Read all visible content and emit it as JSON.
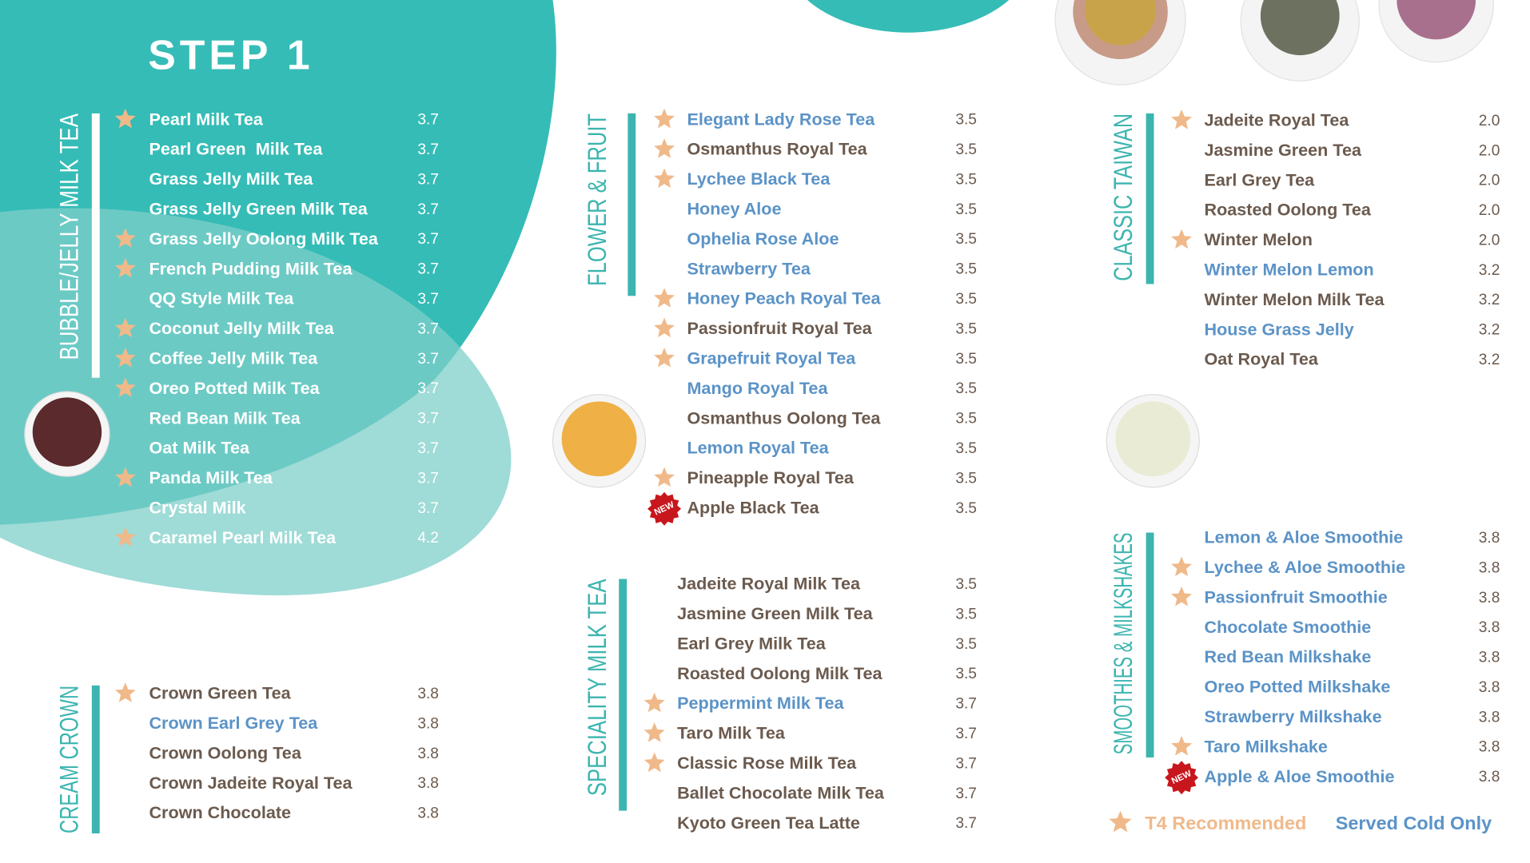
{
  "step": "STEP 1",
  "new_badge": "NEW",
  "sections": [
    {
      "title": "BUBBLE/JELLY MILK TEA",
      "items": [
        {
          "name": "Pearl Milk Tea",
          "price": "3.7",
          "star": true
        },
        {
          "name": "Pearl Green  Milk Tea",
          "price": "3.7"
        },
        {
          "name": "Grass Jelly Milk Tea",
          "price": "3.7"
        },
        {
          "name": "Grass Jelly Green Milk Tea",
          "price": "3.7"
        },
        {
          "name": "Grass Jelly Oolong Milk Tea",
          "price": "3.7",
          "star": true
        },
        {
          "name": "French Pudding Milk Tea",
          "price": "3.7",
          "star": true
        },
        {
          "name": "QQ Style Milk Tea",
          "price": "3.7"
        },
        {
          "name": "Coconut Jelly Milk Tea",
          "price": "3.7",
          "star": true
        },
        {
          "name": "Coffee Jelly Milk Tea",
          "price": "3.7",
          "star": true
        },
        {
          "name": "Oreo Potted Milk Tea",
          "price": "3.7",
          "star": true
        },
        {
          "name": "Red Bean Milk Tea",
          "price": "3.7"
        },
        {
          "name": "Oat Milk Tea",
          "price": "3.7"
        },
        {
          "name": "Panda Milk Tea",
          "price": "3.7",
          "star": true
        },
        {
          "name": "Crystal Milk",
          "price": "3.7"
        },
        {
          "name": "Caramel Pearl Milk Tea",
          "price": "4.2",
          "star": true
        }
      ]
    },
    {
      "title": "CREAM CROWN",
      "items": [
        {
          "name": "Crown Green Tea",
          "price": "3.8",
          "star": true
        },
        {
          "name": "Crown Earl Grey Tea",
          "price": "3.8",
          "cold": true
        },
        {
          "name": "Crown Oolong Tea",
          "price": "3.8"
        },
        {
          "name": "Crown Jadeite Royal Tea",
          "price": "3.8"
        },
        {
          "name": "Crown Chocolate",
          "price": "3.8"
        }
      ]
    },
    {
      "title": "FLOWER & FRUIT",
      "items": [
        {
          "name": "Elegant Lady Rose Tea",
          "price": "3.5",
          "star": true,
          "cold": true
        },
        {
          "name": "Osmanthus Royal Tea",
          "price": "3.5",
          "star": true
        },
        {
          "name": "Lychee Black Tea",
          "price": "3.5",
          "star": true,
          "cold": true
        },
        {
          "name": "Honey Aloe",
          "price": "3.5",
          "cold": true
        },
        {
          "name": "Ophelia Rose Aloe",
          "price": "3.5",
          "cold": true
        },
        {
          "name": "Strawberry Tea",
          "price": "3.5",
          "cold": true
        },
        {
          "name": "Honey Peach Royal Tea",
          "price": "3.5",
          "star": true,
          "cold": true
        },
        {
          "name": "Passionfruit Royal Tea",
          "price": "3.5",
          "star": true
        },
        {
          "name": "Grapefruit Royal Tea",
          "price": "3.5",
          "star": true,
          "cold": true
        },
        {
          "name": "Mango Royal Tea",
          "price": "3.5",
          "cold": true
        },
        {
          "name": "Osmanthus Oolong Tea",
          "price": "3.5"
        },
        {
          "name": "Lemon Royal Tea",
          "price": "3.5",
          "cold": true
        },
        {
          "name": "Pineapple Royal Tea",
          "price": "3.5",
          "star": true
        },
        {
          "name": "Apple Black Tea",
          "price": "3.5",
          "new": true
        }
      ]
    },
    {
      "title": "SPECIALITY MILK TEA",
      "items": [
        {
          "name": "Jadeite Royal Milk Tea",
          "price": "3.5"
        },
        {
          "name": "Jasmine Green Milk Tea",
          "price": "3.5"
        },
        {
          "name": "Earl Grey Milk Tea",
          "price": "3.5"
        },
        {
          "name": "Roasted Oolong Milk Tea",
          "price": "3.5"
        },
        {
          "name": "Peppermint Milk Tea",
          "price": "3.7",
          "star": true,
          "cold": true
        },
        {
          "name": "Taro Milk Tea",
          "price": "3.7",
          "star": true
        },
        {
          "name": "Classic Rose Milk Tea",
          "price": "3.7",
          "star": true
        },
        {
          "name": "Ballet Chocolate Milk Tea",
          "price": "3.7"
        },
        {
          "name": "Kyoto Green Tea Latte",
          "price": "3.7"
        }
      ]
    },
    {
      "title": "CLASSIC TAIWAN",
      "items": [
        {
          "name": "Jadeite Royal Tea",
          "price": "2.0",
          "star": true
        },
        {
          "name": "Jasmine Green Tea",
          "price": "2.0"
        },
        {
          "name": "Earl Grey Tea",
          "price": "2.0"
        },
        {
          "name": "Roasted Oolong Tea",
          "price": "2.0"
        },
        {
          "name": "Winter Melon",
          "price": "2.0",
          "star": true
        },
        {
          "name": "Winter Melon Lemon",
          "price": "3.2",
          "cold": true
        },
        {
          "name": "Winter Melon Milk Tea",
          "price": "3.2"
        },
        {
          "name": "House Grass Jelly",
          "price": "3.2",
          "cold": true
        },
        {
          "name": "Oat Royal Tea",
          "price": "3.2"
        }
      ]
    },
    {
      "title": "SMOOTHIES & MILKSHAKES",
      "items": [
        {
          "name": "Lemon & Aloe Smoothie",
          "price": "3.8",
          "cold": true
        },
        {
          "name": "Lychee & Aloe Smoothie",
          "price": "3.8",
          "star": true,
          "cold": true
        },
        {
          "name": "Passionfruit Smoothie",
          "price": "3.8",
          "star": true,
          "cold": true
        },
        {
          "name": "Chocolate Smoothie",
          "price": "3.8",
          "cold": true
        },
        {
          "name": "Red Bean Milkshake",
          "price": "3.8",
          "cold": true
        },
        {
          "name": "Oreo Potted Milkshake",
          "price": "3.8",
          "cold": true
        },
        {
          "name": "Strawberry Milkshake",
          "price": "3.8",
          "cold": true
        },
        {
          "name": "Taro Milkshake",
          "price": "3.8",
          "star": true,
          "cold": true
        },
        {
          "name": "Apple & Aloe Smoothie",
          "price": "3.8",
          "new": true,
          "cold": true
        }
      ]
    }
  ],
  "legend": {
    "recommended": "T4 Recommended",
    "cold": "Served Cold Only"
  }
}
